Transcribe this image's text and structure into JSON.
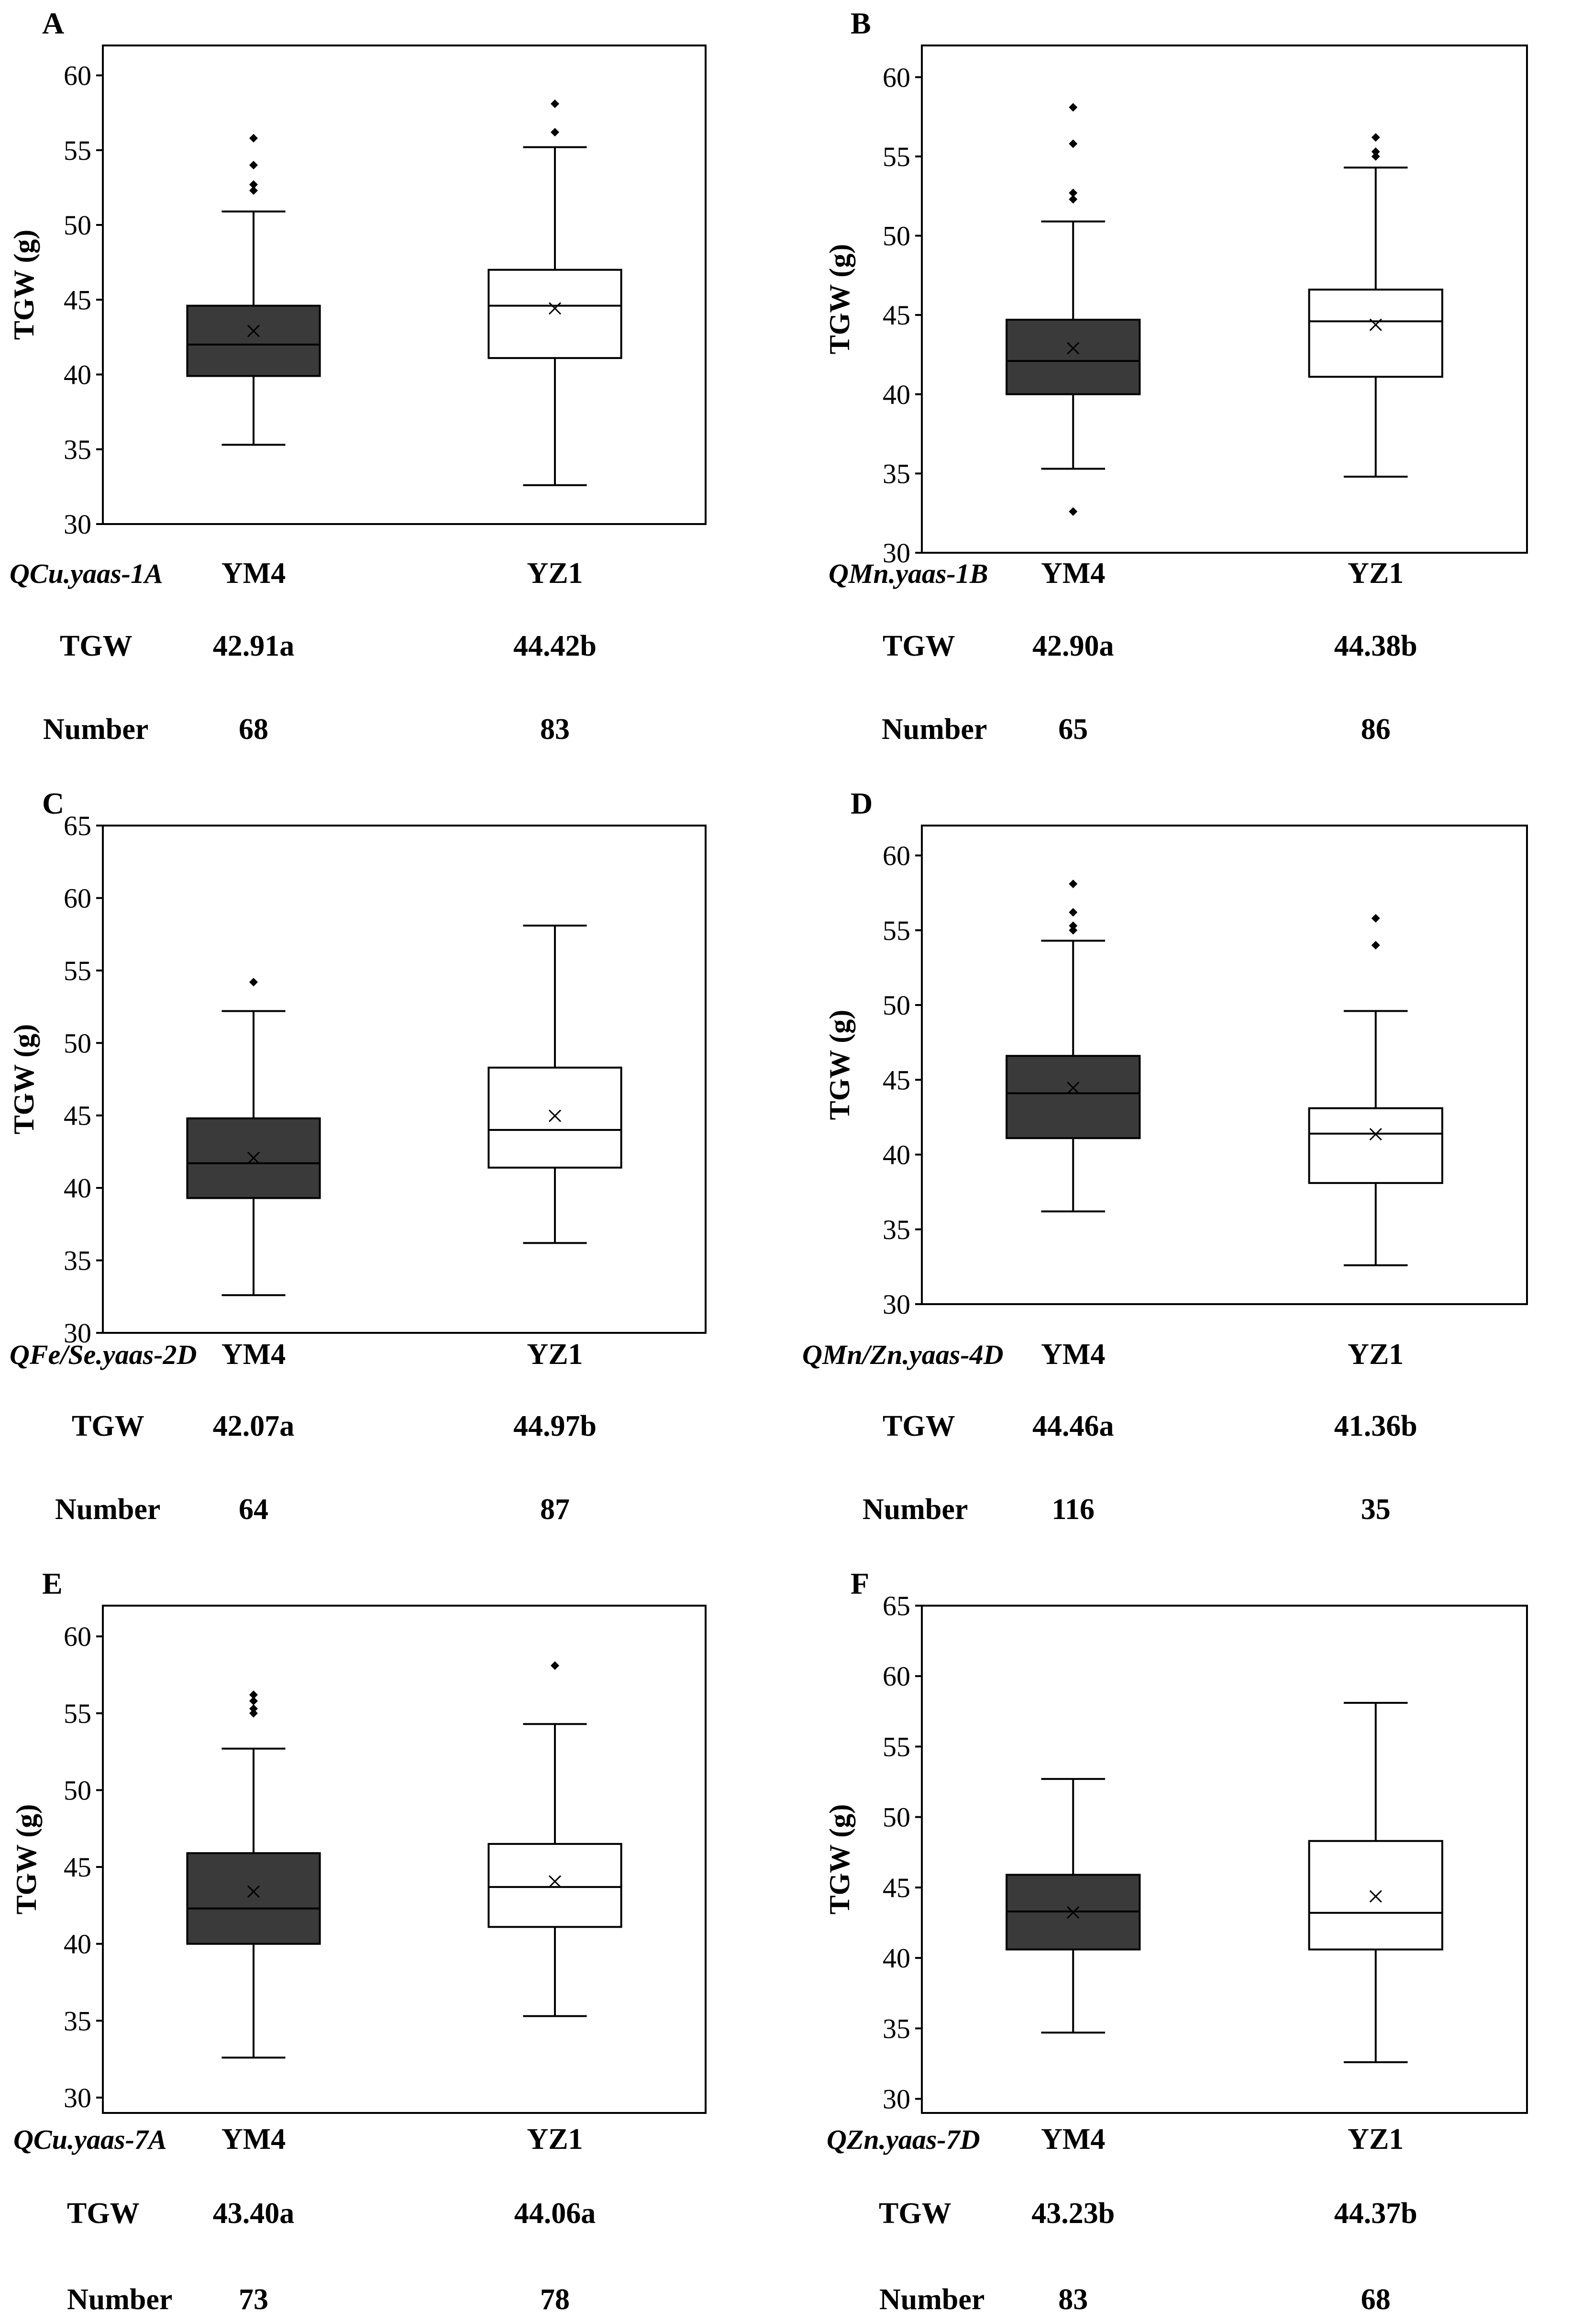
{
  "figure": {
    "colors": {
      "dark_box": "#3a3a3a",
      "light_box": "#ffffff",
      "stroke": "#000000"
    }
  },
  "chart_data": [
    {
      "panel": "A",
      "type": "box",
      "ylabel": "TGW (g)",
      "ylim": [
        30,
        62
      ],
      "yticks": [
        30,
        35,
        40,
        45,
        50,
        55,
        60
      ],
      "qtl": "QCu.yaas-1A",
      "row_labels": {
        "tgw": "TGW",
        "number": "Number"
      },
      "groups": [
        {
          "name": "YM4",
          "fill": "dark",
          "min": 35.3,
          "q1": 39.9,
          "median": 42.0,
          "q3": 44.6,
          "max": 50.9,
          "mean": 42.91,
          "outliers": [
            52.3,
            52.7,
            54.0,
            55.8
          ],
          "tgw": "42.91a",
          "number": "68"
        },
        {
          "name": "YZ1",
          "fill": "light",
          "min": 32.6,
          "q1": 41.1,
          "median": 44.6,
          "q3": 47.0,
          "max": 55.2,
          "mean": 44.42,
          "outliers": [
            56.2,
            58.1
          ],
          "tgw": "44.42b",
          "number": "83"
        }
      ]
    },
    {
      "panel": "B",
      "type": "box",
      "ylabel": "TGW (g)",
      "ylim": [
        30,
        62
      ],
      "yticks": [
        30,
        35,
        40,
        45,
        50,
        55,
        60
      ],
      "qtl": "QMn.yaas-1B",
      "row_labels": {
        "tgw": "TGW",
        "number": "Number"
      },
      "groups": [
        {
          "name": "YM4",
          "fill": "dark",
          "min": 35.3,
          "q1": 40.0,
          "median": 42.1,
          "q3": 44.7,
          "max": 50.9,
          "mean": 42.9,
          "outliers": [
            32.6,
            52.3,
            52.7,
            55.8,
            58.1
          ],
          "tgw": "42.90a",
          "number": "65"
        },
        {
          "name": "YZ1",
          "fill": "light",
          "min": 34.8,
          "q1": 41.1,
          "median": 44.6,
          "q3": 46.6,
          "max": 54.3,
          "mean": 44.38,
          "outliers": [
            55.0,
            55.3,
            56.2
          ],
          "tgw": "44.38b",
          "number": "86"
        }
      ]
    },
    {
      "panel": "C",
      "type": "box",
      "ylabel": "TGW (g)",
      "ylim": [
        30,
        65
      ],
      "yticks": [
        30,
        35,
        40,
        45,
        50,
        55,
        60,
        65
      ],
      "qtl": "QFe/Se.yaas-2D",
      "row_labels": {
        "tgw": "TGW",
        "number": "Number"
      },
      "groups": [
        {
          "name": "YM4",
          "fill": "dark",
          "min": 32.6,
          "q1": 39.3,
          "median": 41.7,
          "q3": 44.8,
          "max": 52.2,
          "mean": 42.07,
          "outliers": [
            54.2
          ],
          "tgw": "42.07a",
          "number": "64"
        },
        {
          "name": "YZ1",
          "fill": "light",
          "min": 36.2,
          "q1": 41.4,
          "median": 44.0,
          "q3": 48.3,
          "max": 58.1,
          "mean": 44.97,
          "outliers": [],
          "tgw": "44.97b",
          "number": "87"
        }
      ]
    },
    {
      "panel": "D",
      "type": "box",
      "ylabel": "TGW (g)",
      "ylim": [
        30,
        62
      ],
      "yticks": [
        30,
        35,
        40,
        45,
        50,
        55,
        60
      ],
      "qtl": "QMn/Zn.yaas-4D",
      "row_labels": {
        "tgw": "TGW",
        "number": "Number"
      },
      "groups": [
        {
          "name": "YM4",
          "fill": "dark",
          "min": 36.2,
          "q1": 41.1,
          "median": 44.1,
          "q3": 46.6,
          "max": 54.3,
          "mean": 44.46,
          "outliers": [
            55.0,
            55.3,
            56.2,
            58.1
          ],
          "tgw": "44.46a",
          "number": "116"
        },
        {
          "name": "YZ1",
          "fill": "light",
          "min": 32.6,
          "q1": 38.1,
          "median": 41.4,
          "q3": 43.1,
          "max": 49.6,
          "mean": 41.36,
          "outliers": [
            54.0,
            55.8
          ],
          "tgw": "41.36b",
          "number": "35"
        }
      ]
    },
    {
      "panel": "E",
      "type": "box",
      "ylabel": "TGW (g)",
      "ylim": [
        29,
        62
      ],
      "yticks": [
        30,
        35,
        40,
        45,
        50,
        55,
        60
      ],
      "qtl": "QCu.yaas-7A",
      "row_labels": {
        "tgw": "TGW",
        "number": "Number"
      },
      "groups": [
        {
          "name": "YM4",
          "fill": "dark",
          "min": 32.6,
          "q1": 40.0,
          "median": 42.3,
          "q3": 45.9,
          "max": 52.7,
          "mean": 43.4,
          "outliers": [
            55.0,
            55.3,
            55.8,
            56.2
          ],
          "tgw": "43.40a",
          "number": "73"
        },
        {
          "name": "YZ1",
          "fill": "light",
          "min": 35.3,
          "q1": 41.1,
          "median": 43.7,
          "q3": 46.5,
          "max": 54.3,
          "mean": 44.06,
          "outliers": [
            58.1
          ],
          "tgw": "44.06a",
          "number": "78"
        }
      ]
    },
    {
      "panel": "F",
      "type": "box",
      "ylabel": "TGW (g)",
      "ylim": [
        29,
        65
      ],
      "yticks": [
        30,
        35,
        40,
        45,
        50,
        55,
        60,
        65
      ],
      "qtl": "QZn.yaas-7D",
      "row_labels": {
        "tgw": "TGW",
        "number": "Number"
      },
      "groups": [
        {
          "name": "YM4",
          "fill": "dark",
          "min": 34.7,
          "q1": 40.6,
          "median": 43.3,
          "q3": 45.9,
          "max": 52.7,
          "mean": 43.23,
          "outliers": [],
          "tgw": "43.23b",
          "number": "83"
        },
        {
          "name": "YZ1",
          "fill": "light",
          "min": 32.6,
          "q1": 40.6,
          "median": 43.2,
          "q3": 48.3,
          "max": 58.1,
          "mean": 44.37,
          "outliers": [],
          "tgw": "44.37b",
          "number": "68"
        }
      ]
    }
  ]
}
